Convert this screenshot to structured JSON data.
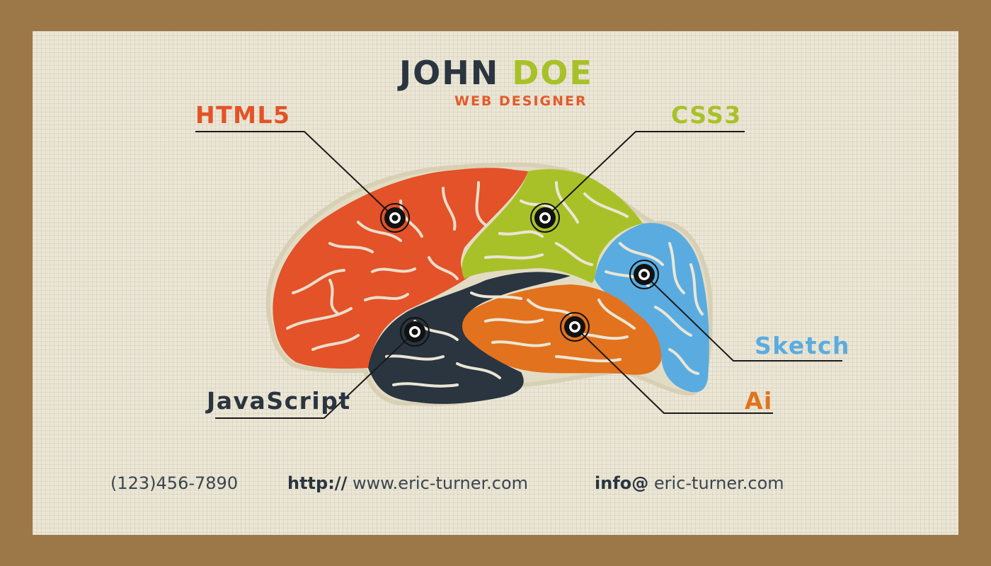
{
  "card": {
    "first_name": "JOHN",
    "last_name": "DOE",
    "title": "WEB DESIGNER"
  },
  "skills": {
    "html": "HTML5",
    "css": "CSS3",
    "sketch": "Sketch",
    "ai": "Ai",
    "js": "JavaScript"
  },
  "contact": {
    "phone": "(123)456-7890",
    "web_prefix": "http://",
    "web": "www.eric-turner.com",
    "email_prefix": "info@",
    "email": "eric-turner.com"
  },
  "colors": {
    "background_frame": "#9c7849",
    "card": "#ebe6d5",
    "dark": "#2a3540",
    "orange_red": "#e35228",
    "lime": "#a9c129",
    "sky_blue": "#5aace0",
    "orange": "#e2721e"
  },
  "icons": [
    "brain-illustration",
    "target-marker-icon"
  ]
}
